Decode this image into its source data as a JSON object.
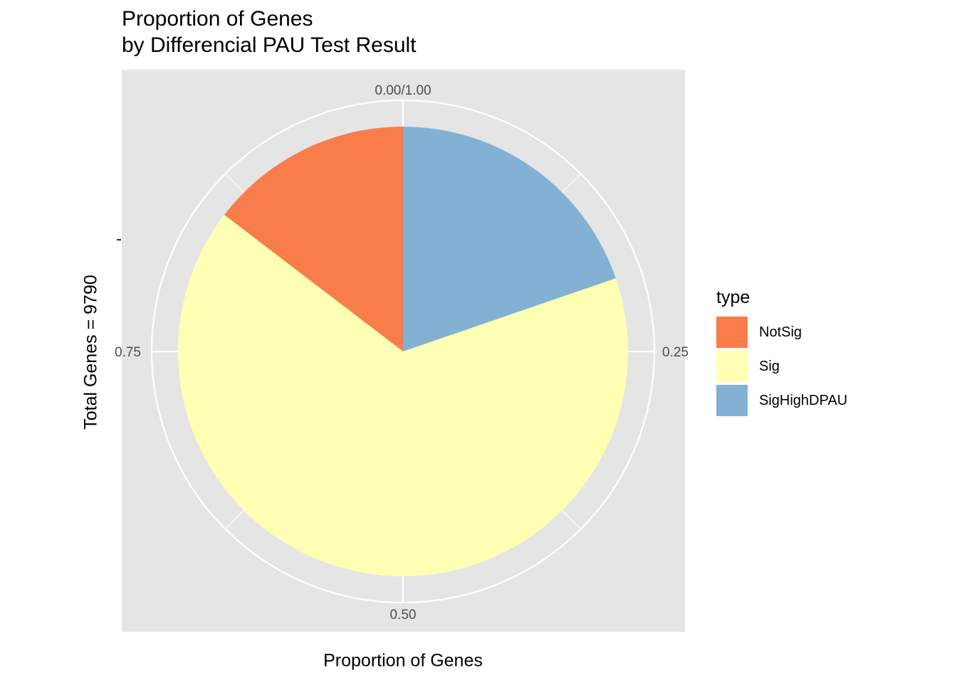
{
  "chart_data": {
    "type": "pie",
    "title": [
      "Proportion of Genes",
      "by Differencial PAU Test Result"
    ],
    "xlabel": "Proportion of Genes",
    "ylabel": "Total Genes = 9790",
    "theta_ticks": [
      {
        "value": 0.0,
        "label": "0.00/1.00"
      },
      {
        "value": 0.25,
        "label": "0.25"
      },
      {
        "value": 0.5,
        "label": "0.50"
      },
      {
        "value": 0.75,
        "label": "0.75"
      }
    ],
    "legend": {
      "title": "type",
      "position": "right"
    },
    "slices": [
      {
        "name": "NotSig",
        "start": 0.8539,
        "end": 1.0,
        "color": "#f87d4b"
      },
      {
        "name": "Sig",
        "start": 0.1972,
        "end": 0.8539,
        "color": "#ffffb3"
      },
      {
        "name": "SigHighDPAU",
        "start": 0.0,
        "end": 0.1972,
        "color": "#83b1d3"
      }
    ],
    "panel_background": "#e5e5e5",
    "grid": true
  },
  "legend_items": [
    {
      "label": "NotSig",
      "color": "#f87d4b"
    },
    {
      "label": "Sig",
      "color": "#ffffb3"
    },
    {
      "label": "SigHighDPAU",
      "color": "#83b1d3"
    }
  ]
}
